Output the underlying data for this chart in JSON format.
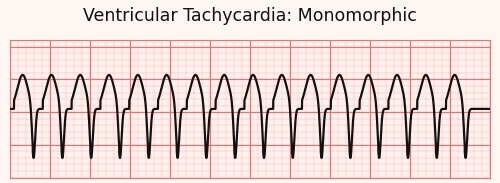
{
  "title": "Ventricular Tachycardia: Monomorphic",
  "title_fontsize": 12.5,
  "bg_color": "#fef6f2",
  "paper_bg": "#fff2ee",
  "major_grid_color": "#f07070",
  "minor_grid_color": "#ffb8b8",
  "ecg_color": "#111111",
  "ecg_linewidth": 1.6,
  "figsize": [
    5.0,
    1.83
  ],
  "dpi": 100,
  "num_beats": 16,
  "beat_period": 0.36,
  "r_amp": 0.52,
  "s_amp": -0.75,
  "xlim": [
    0,
    6
  ],
  "ylim": [
    -1.05,
    1.05
  ]
}
